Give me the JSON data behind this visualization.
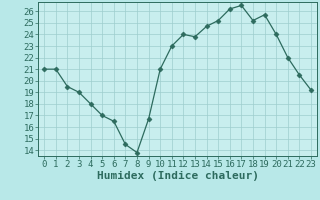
{
  "x": [
    0,
    1,
    2,
    3,
    4,
    5,
    6,
    7,
    8,
    9,
    10,
    11,
    12,
    13,
    14,
    15,
    16,
    17,
    18,
    19,
    20,
    21,
    22,
    23
  ],
  "y": [
    21.0,
    21.0,
    19.5,
    19.0,
    18.0,
    17.0,
    16.5,
    14.5,
    13.8,
    16.7,
    21.0,
    23.0,
    24.0,
    23.8,
    24.7,
    25.2,
    26.2,
    26.5,
    25.2,
    25.7,
    24.0,
    22.0,
    20.5,
    19.2
  ],
  "line_color": "#2d6b5e",
  "marker": "D",
  "marker_size": 2.5,
  "bg_color": "#b8e8e8",
  "plot_bg_color": "#c8eeee",
  "grid_color": "#9ecece",
  "xlabel": "Humidex (Indice chaleur)",
  "xlim": [
    -0.5,
    23.5
  ],
  "ylim": [
    13.5,
    26.8
  ],
  "yticks": [
    14,
    15,
    16,
    17,
    18,
    19,
    20,
    21,
    22,
    23,
    24,
    25,
    26
  ],
  "xticks": [
    0,
    1,
    2,
    3,
    4,
    5,
    6,
    7,
    8,
    9,
    10,
    11,
    12,
    13,
    14,
    15,
    16,
    17,
    18,
    19,
    20,
    21,
    22,
    23
  ],
  "tick_color": "#2d6b5e",
  "tick_fontsize": 6.5,
  "xlabel_fontsize": 8.0
}
